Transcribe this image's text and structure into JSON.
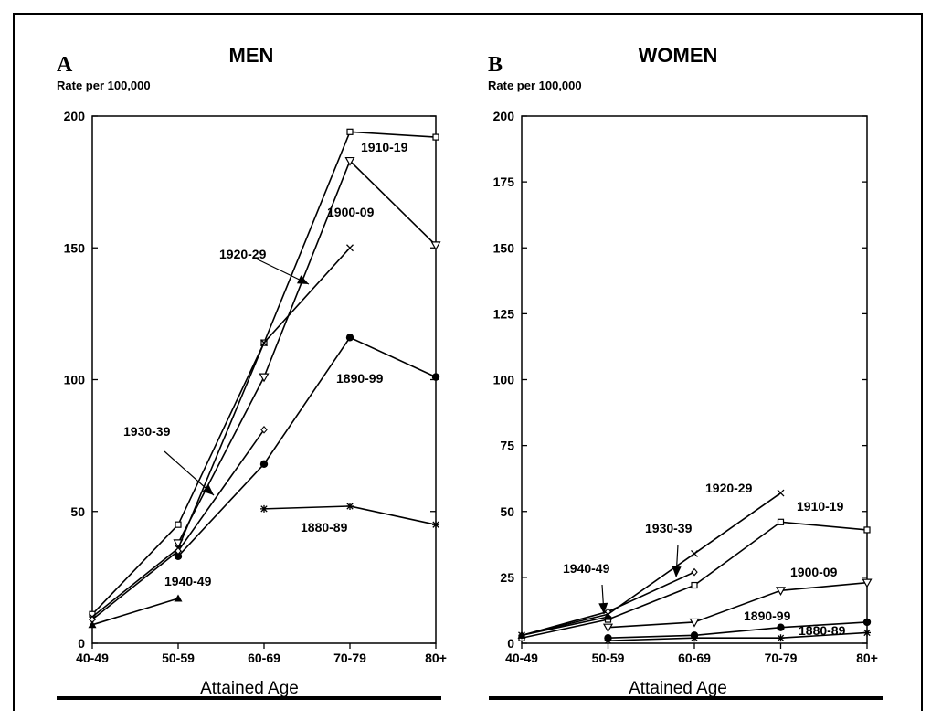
{
  "chart_data": [
    {
      "type": "line",
      "panel_letter": "A",
      "title": "MEN",
      "ylabel": "Rate per 100,000",
      "xlabel": "Attained Age",
      "categories": [
        "40-49",
        "50-59",
        "60-69",
        "70-79",
        "80+"
      ],
      "yticks": [
        "0",
        "50",
        "100",
        "150",
        "200"
      ],
      "ylim": [
        0,
        200
      ],
      "series": [
        {
          "name": "1880-89",
          "marker": "asterisk",
          "values": [
            null,
            null,
            51,
            52,
            45
          ]
        },
        {
          "name": "1890-99",
          "marker": "filled-circle",
          "values": [
            null,
            33,
            68,
            116,
            101
          ]
        },
        {
          "name": "1900-09",
          "marker": "down-triangle",
          "values": [
            null,
            38,
            101,
            183,
            151
          ]
        },
        {
          "name": "1910-19",
          "marker": "square",
          "values": [
            11,
            45,
            114,
            194,
            192
          ]
        },
        {
          "name": "1920-29",
          "marker": "x",
          "values": [
            10,
            36,
            114,
            150,
            null
          ]
        },
        {
          "name": "1930-39",
          "marker": "diamond",
          "values": [
            9,
            35,
            81,
            null,
            null
          ]
        },
        {
          "name": "1940-49",
          "marker": "filled-triangle",
          "values": [
            7,
            17,
            null,
            null,
            null
          ]
        }
      ]
    },
    {
      "type": "line",
      "panel_letter": "B",
      "title": "WOMEN",
      "ylabel": "Rate per 100,000",
      "xlabel": "Attained Age",
      "categories": [
        "40-49",
        "50-59",
        "60-69",
        "70-79",
        "80+"
      ],
      "yticks": [
        "0",
        "25",
        "50",
        "75",
        "100",
        "125",
        "150",
        "175",
        "200"
      ],
      "ylim": [
        0,
        200
      ],
      "series": [
        {
          "name": "1880-89",
          "marker": "asterisk",
          "values": [
            null,
            1,
            2,
            2,
            4
          ]
        },
        {
          "name": "1890-99",
          "marker": "filled-circle",
          "values": [
            null,
            2,
            3,
            6,
            8
          ]
        },
        {
          "name": "1900-09",
          "marker": "down-triangle",
          "values": [
            null,
            6,
            8,
            20,
            23
          ]
        },
        {
          "name": "1910-19",
          "marker": "square",
          "values": [
            2,
            9,
            22,
            46,
            43
          ]
        },
        {
          "name": "1920-29",
          "marker": "x",
          "values": [
            3,
            11,
            34,
            57,
            null
          ]
        },
        {
          "name": "1930-39",
          "marker": "diamond",
          "values": [
            3,
            12,
            27,
            null,
            null
          ]
        },
        {
          "name": "1940-49",
          "marker": "filled-triangle",
          "values": [
            3,
            10,
            null,
            null,
            null
          ]
        }
      ]
    }
  ]
}
